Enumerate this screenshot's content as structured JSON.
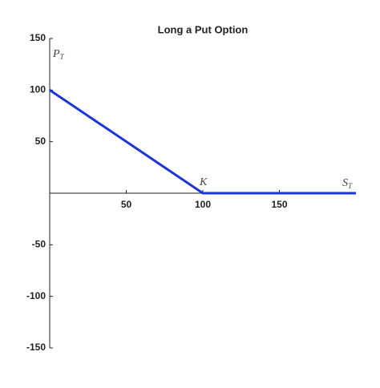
{
  "chart_data": {
    "type": "line",
    "title": "Long a Put Option",
    "x": [
      0,
      100,
      200
    ],
    "values": [
      100,
      0,
      0
    ],
    "color": "#1b36d8",
    "xlim": [
      0,
      200
    ],
    "ylim": [
      -150,
      150
    ],
    "xticks": [
      50,
      100,
      150
    ],
    "yticks": [
      -150,
      -100,
      -50,
      50,
      100,
      150
    ],
    "annotations": [
      {
        "text": "P",
        "subscript": "T"
      },
      {
        "text": "K"
      },
      {
        "text": "S",
        "subscript": "T"
      }
    ]
  }
}
